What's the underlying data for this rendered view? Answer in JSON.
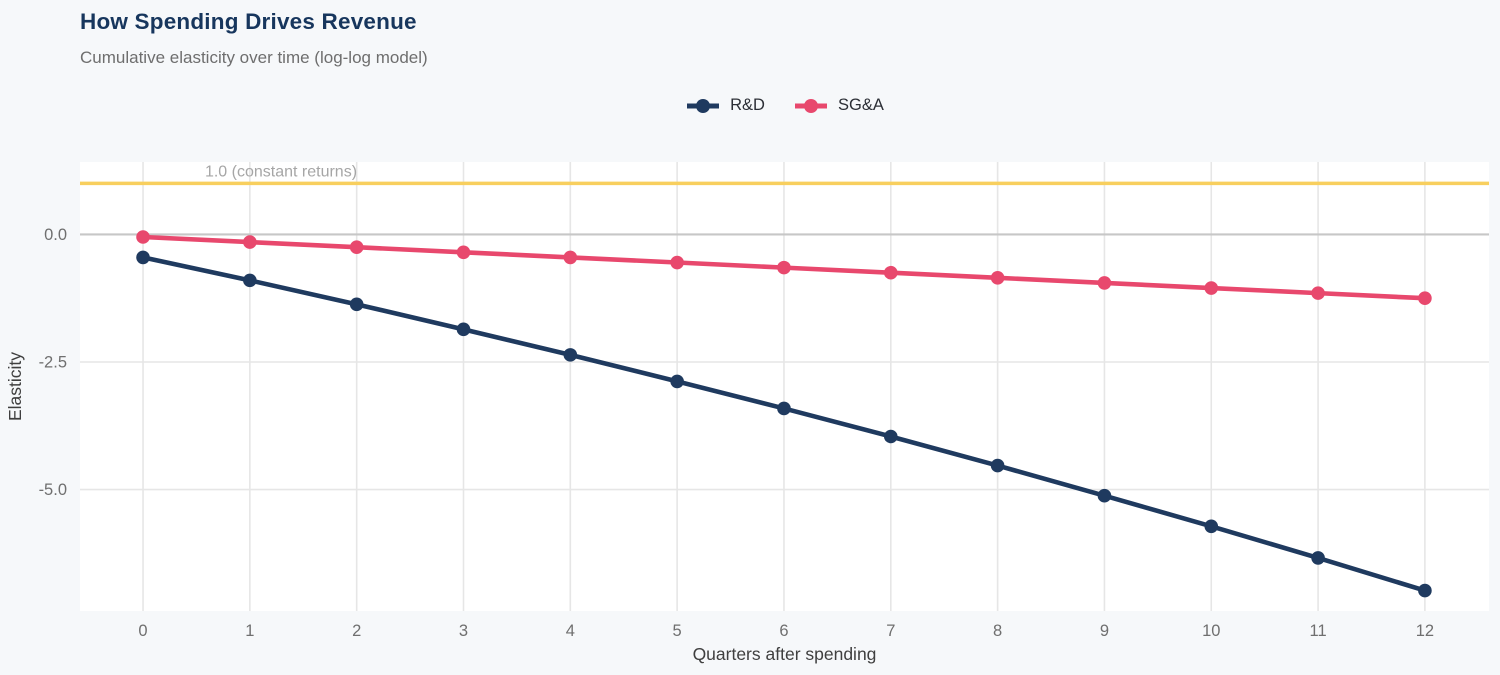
{
  "page": {
    "background": "#f6f8fa"
  },
  "header": {
    "title": "How Spending Drives Revenue",
    "subtitle": "Cumulative elasticity over time (log-log model)",
    "title_color": "#17365d"
  },
  "chart_data": {
    "type": "line",
    "title": "How Spending Drives Revenue",
    "subtitle": "Cumulative elasticity over time (log-log model)",
    "xlabel": "Quarters after spending",
    "ylabel": "Elasticity",
    "x": [
      0,
      1,
      2,
      3,
      4,
      5,
      6,
      7,
      8,
      9,
      10,
      11,
      12
    ],
    "series": [
      {
        "name": "R&D",
        "color": "#1f3a5f",
        "values": [
          -0.45,
          -0.9,
          -1.37,
          -1.86,
          -2.36,
          -2.88,
          -3.41,
          -3.96,
          -4.53,
          -5.12,
          -5.72,
          -6.34,
          -6.98
        ]
      },
      {
        "name": "SG&A",
        "color": "#e8486d",
        "values": [
          -0.05,
          -0.15,
          -0.25,
          -0.35,
          -0.45,
          -0.55,
          -0.65,
          -0.75,
          -0.85,
          -0.95,
          -1.05,
          -1.15,
          -1.25
        ]
      }
    ],
    "x_ticks": [
      0,
      1,
      2,
      3,
      4,
      5,
      6,
      7,
      8,
      9,
      10,
      11,
      12
    ],
    "y_ticks": [
      {
        "value": 0,
        "label": "0.0"
      },
      {
        "value": -2.5,
        "label": "-2.5"
      },
      {
        "value": -5,
        "label": "-5.0"
      }
    ],
    "xlim": [
      -0.59,
      12.6
    ],
    "ylim": [
      -7.38,
      1.42
    ],
    "reference_line": {
      "value": 1.0,
      "label": "1.0 (constant returns)",
      "color": "#f8cf5e"
    },
    "legend_position": "top-center",
    "grid": true,
    "colors": {
      "panel": "#ffffff",
      "grid": "#e6e6e6",
      "zero_line": "#c7c7c7",
      "tick_text": "#6f6f6f",
      "axis_title_text": "#3f3f3f",
      "annotation_text": "#a6a6a6"
    }
  }
}
